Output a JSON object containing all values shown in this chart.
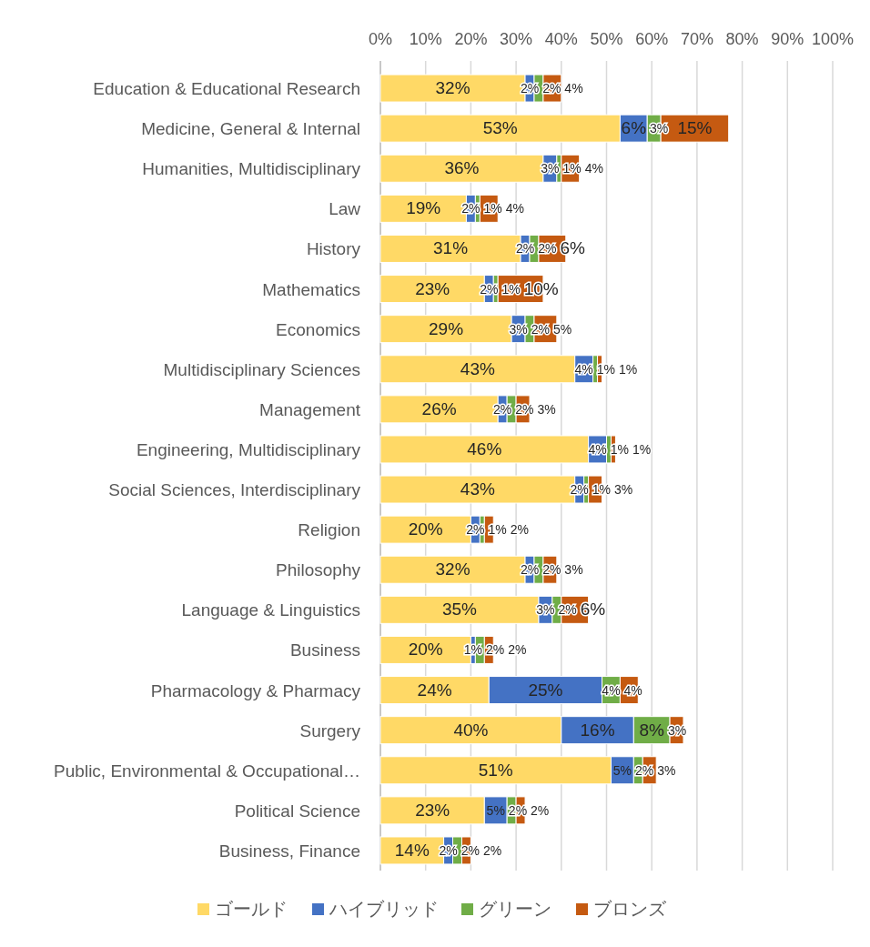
{
  "chart_data": {
    "type": "bar",
    "orientation": "horizontal",
    "stacked": true,
    "categories": [
      "Education & Educational Research",
      "Medicine, General & Internal",
      "Humanities, Multidisciplinary",
      "Law",
      "History",
      "Mathematics",
      "Economics",
      "Multidisciplinary Sciences",
      "Management",
      "Engineering, Multidisciplinary",
      "Social Sciences, Interdisciplinary",
      "Religion",
      "Philosophy",
      "Language & Linguistics",
      "Business",
      "Pharmacology & Pharmacy",
      "Surgery",
      "Public, Environmental & Occupational…",
      "Political Science",
      "Business, Finance"
    ],
    "series": [
      {
        "name": "ゴールド",
        "color": "#ffd966",
        "values": [
          32,
          53,
          36,
          19,
          31,
          23,
          29,
          43,
          26,
          46,
          43,
          20,
          32,
          35,
          20,
          24,
          40,
          51,
          23,
          14
        ],
        "value_labels": [
          "32%",
          "53%",
          "36%",
          "19%",
          "31%",
          "23%",
          "29%",
          "43%",
          "26%",
          "46%",
          "43%",
          "20%",
          "32%",
          "35%",
          "20%",
          "24%",
          "40%",
          "51%",
          "23%",
          "14%"
        ]
      },
      {
        "name": "ハイブリッド",
        "color": "#4472c4",
        "values": [
          2,
          6,
          3,
          2,
          2,
          2,
          3,
          4,
          2,
          4,
          2,
          2,
          2,
          3,
          1,
          25,
          16,
          5,
          5,
          2
        ],
        "value_labels": [
          "2%",
          "6%",
          "3%",
          "2%",
          "2%",
          "2%",
          "3%",
          "4%",
          "2%",
          "4%",
          "2%",
          "2%",
          "2%",
          "3%",
          "1%",
          "25%",
          "16%",
          "5%",
          "5%",
          "2%"
        ]
      },
      {
        "name": "グリーン",
        "color": "#70ad47",
        "values": [
          2,
          3,
          1,
          1,
          2,
          1,
          2,
          1,
          2,
          1,
          1,
          1,
          2,
          2,
          2,
          4,
          8,
          2,
          2,
          2
        ],
        "value_labels": [
          "2%",
          "3%",
          "1%",
          "1%",
          "2%",
          "1%",
          "2%",
          "1%",
          "2%",
          "1%",
          "1%",
          "1%",
          "2%",
          "2%",
          "2%",
          "4%",
          "8%",
          "2%",
          "2%",
          "2%"
        ]
      },
      {
        "name": "ブロンズ",
        "color": "#c55a11",
        "values": [
          4,
          15,
          4,
          4,
          6,
          10,
          5,
          1,
          3,
          1,
          3,
          2,
          3,
          6,
          2,
          4,
          3,
          3,
          2,
          2
        ],
        "value_labels": [
          "4%",
          "15%",
          "4%",
          "4%",
          "6%",
          "10%",
          "5%",
          "1%",
          "3%",
          "1%",
          "3%",
          "2%",
          "3%",
          "6%",
          "2%",
          "4%",
          "3%",
          "3%",
          "2%",
          "2%"
        ]
      }
    ],
    "xlim": [
      0,
      100
    ],
    "xticks": [
      {
        "value": 0,
        "label": "0%"
      },
      {
        "value": 10,
        "label": "10%"
      },
      {
        "value": 20,
        "label": "20%"
      },
      {
        "value": 30,
        "label": "30%"
      },
      {
        "value": 40,
        "label": "40%"
      },
      {
        "value": 50,
        "label": "50%"
      },
      {
        "value": 60,
        "label": "60%"
      },
      {
        "value": 70,
        "label": "70%"
      },
      {
        "value": 80,
        "label": "80%"
      },
      {
        "value": 90,
        "label": "90%"
      },
      {
        "value": 100,
        "label": "100%"
      }
    ],
    "grid": "x",
    "legend": "bottom"
  }
}
